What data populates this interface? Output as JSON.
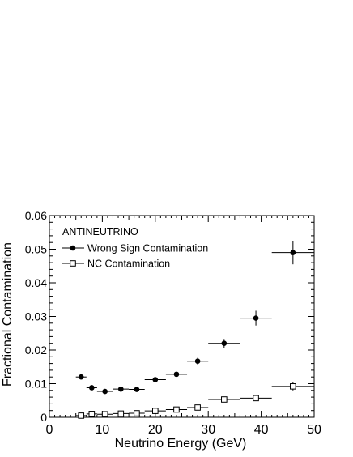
{
  "chart_data": {
    "type": "scatter",
    "title": "",
    "xlabel": "Neutrino Energy (GeV)",
    "ylabel": "Fractional Contamination",
    "xlim": [
      0,
      50
    ],
    "ylim": [
      0,
      0.06
    ],
    "x_ticks": [
      "0",
      "10",
      "20",
      "30",
      "40",
      "50"
    ],
    "y_ticks": [
      "0",
      "0.01",
      "0.02",
      "0.03",
      "0.04",
      "0.05",
      "0.06"
    ],
    "x_tick_values": [
      0,
      10,
      20,
      30,
      40,
      50
    ],
    "y_tick_values": [
      0,
      0.01,
      0.02,
      0.03,
      0.04,
      0.05,
      0.06
    ],
    "grid": false,
    "legend_header": "ANTINEUTRINO",
    "legend_position": "top-left",
    "series": [
      {
        "name": "Wrong Sign Contamination",
        "marker": "filled-circle",
        "color": "#000000",
        "points": [
          {
            "x": 6.0,
            "xerr": 1.0,
            "y": 0.012,
            "yerr": 0.0005
          },
          {
            "x": 8.0,
            "xerr": 1.0,
            "y": 0.0088,
            "yerr": 0.0005
          },
          {
            "x": 10.5,
            "xerr": 1.5,
            "y": 0.0077,
            "yerr": 0.0005
          },
          {
            "x": 13.5,
            "xerr": 1.5,
            "y": 0.0084,
            "yerr": 0.0005
          },
          {
            "x": 16.5,
            "xerr": 1.5,
            "y": 0.0083,
            "yerr": 0.0005
          },
          {
            "x": 20.0,
            "xerr": 2.0,
            "y": 0.0112,
            "yerr": 0.0006
          },
          {
            "x": 24.0,
            "xerr": 2.0,
            "y": 0.0128,
            "yerr": 0.0007
          },
          {
            "x": 28.0,
            "xerr": 2.0,
            "y": 0.0167,
            "yerr": 0.001
          },
          {
            "x": 33.0,
            "xerr": 3.0,
            "y": 0.022,
            "yerr": 0.0013
          },
          {
            "x": 39.0,
            "xerr": 3.0,
            "y": 0.0295,
            "yerr": 0.0022
          },
          {
            "x": 46.0,
            "xerr": 4.0,
            "y": 0.049,
            "yerr": 0.0035
          }
        ]
      },
      {
        "name": "NC Contamination",
        "marker": "open-square",
        "color": "#000000",
        "points": [
          {
            "x": 6.0,
            "xerr": 1.0,
            "y": 0.0005,
            "yerr": 0.0002
          },
          {
            "x": 8.0,
            "xerr": 1.0,
            "y": 0.001,
            "yerr": 0.0002
          },
          {
            "x": 10.5,
            "xerr": 1.5,
            "y": 0.0009,
            "yerr": 0.0002
          },
          {
            "x": 13.5,
            "xerr": 1.5,
            "y": 0.0011,
            "yerr": 0.0002
          },
          {
            "x": 16.5,
            "xerr": 1.5,
            "y": 0.0012,
            "yerr": 0.0002
          },
          {
            "x": 20.0,
            "xerr": 2.0,
            "y": 0.0019,
            "yerr": 0.0003
          },
          {
            "x": 24.0,
            "xerr": 2.0,
            "y": 0.0023,
            "yerr": 0.0003
          },
          {
            "x": 28.0,
            "xerr": 2.0,
            "y": 0.0029,
            "yerr": 0.0004
          },
          {
            "x": 33.0,
            "xerr": 3.0,
            "y": 0.0053,
            "yerr": 0.0005
          },
          {
            "x": 39.0,
            "xerr": 3.0,
            "y": 0.0057,
            "yerr": 0.0006
          },
          {
            "x": 46.0,
            "xerr": 4.0,
            "y": 0.0092,
            "yerr": 0.0012
          }
        ]
      }
    ]
  }
}
